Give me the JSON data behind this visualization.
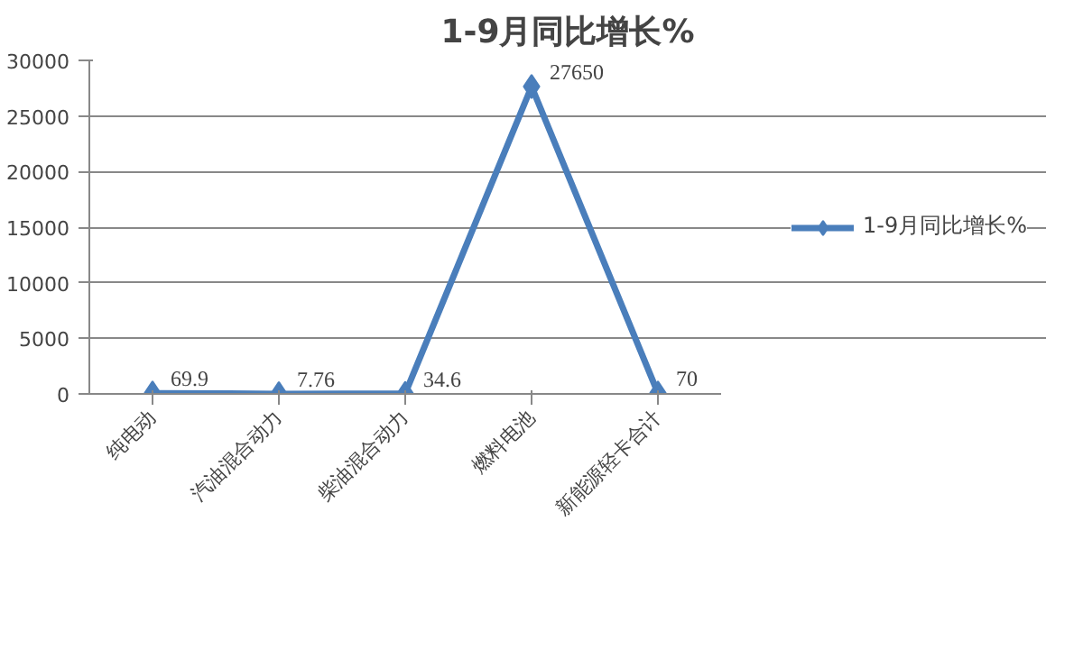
{
  "chart_data": {
    "type": "line",
    "title": "1-9月同比增长%",
    "categories": [
      "纯电动",
      "汽油混合动力",
      "柴油混合动力",
      "燃料电池",
      "新能源轻卡合计"
    ],
    "series": [
      {
        "name": "1-9月同比增长%",
        "color": "#4a7ebb",
        "values": [
          69.9,
          7.76,
          34.6,
          27650,
          70
        ]
      }
    ],
    "ylim": [
      0,
      30000
    ],
    "yticks": [
      0,
      5000,
      10000,
      15000,
      20000,
      25000,
      30000
    ],
    "grid": "y",
    "legend": "right",
    "marker": "diamond",
    "data_labels": true
  }
}
